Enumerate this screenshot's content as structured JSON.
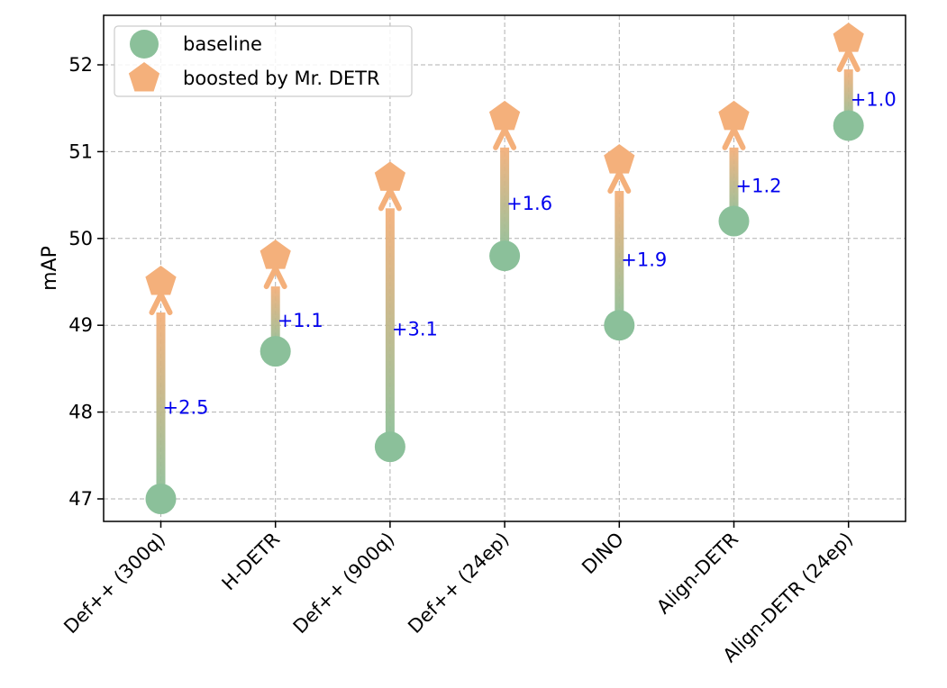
{
  "chart_data": {
    "type": "scatter",
    "title": "",
    "xlabel": "",
    "ylabel": "mAP",
    "ylim": [
      46.75,
      52.6
    ],
    "yticks": [
      47,
      48,
      49,
      50,
      51,
      52
    ],
    "grid": true,
    "legend_position": "top-left",
    "categories": [
      "Def++ (300q)",
      "H-DETR",
      "Def++ (900q)",
      "Def++ (24ep)",
      "DINO",
      "Align-DETR",
      "Align-DETR (24ep)"
    ],
    "series": [
      {
        "name": "baseline",
        "marker": "circle",
        "color": "#8bc09a",
        "values": [
          47.0,
          48.7,
          47.6,
          49.8,
          49.0,
          50.2,
          51.3
        ]
      },
      {
        "name": "boosted by Mr. DETR",
        "marker": "pentagon",
        "color": "#f4b07b",
        "values": [
          49.5,
          49.8,
          50.7,
          51.4,
          50.9,
          51.4,
          52.3
        ]
      }
    ],
    "annotations": [
      "+2.5",
      "+1.1",
      "+3.1",
      "+1.6",
      "+1.9",
      "+1.2",
      "+1.0"
    ],
    "annotation_color": "#0000ee"
  }
}
